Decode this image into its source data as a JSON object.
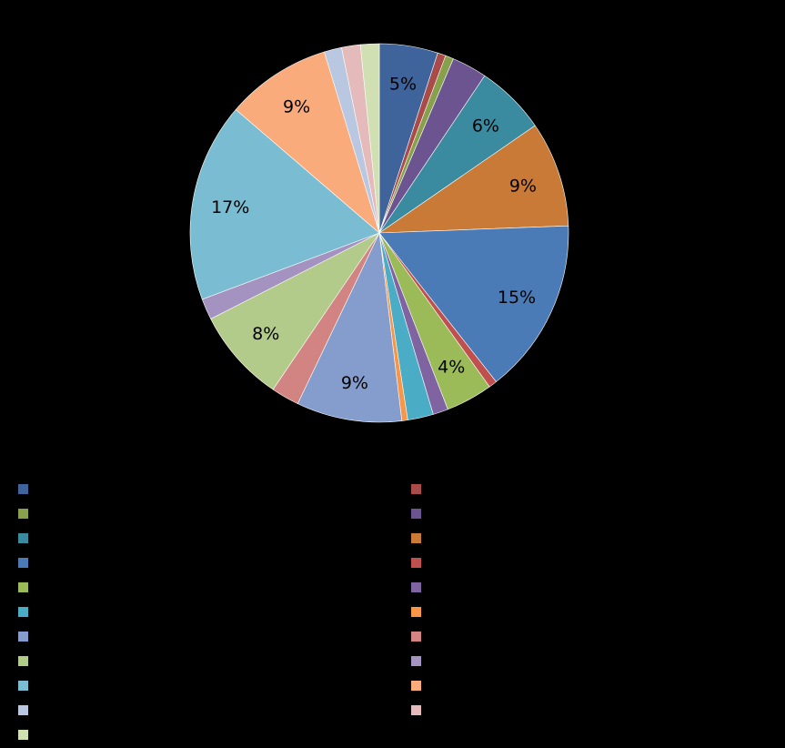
{
  "chart_data": {
    "type": "pie",
    "title": "",
    "start_angle_deg": 0,
    "direction": "clockwise",
    "slices": [
      {
        "value": 5.0,
        "label": "5%",
        "color": "#3f649c",
        "category": ""
      },
      {
        "value": 0.7,
        "label": "",
        "color": "#a94b48",
        "category": ""
      },
      {
        "value": 0.7,
        "label": "",
        "color": "#86a04b",
        "category": ""
      },
      {
        "value": 3.0,
        "label": "",
        "color": "#6c5490",
        "category": ""
      },
      {
        "value": 6.0,
        "label": "6%",
        "color": "#3b8ba0",
        "category": ""
      },
      {
        "value": 9.0,
        "label": "9%",
        "color": "#c87a36",
        "category": ""
      },
      {
        "value": 15.0,
        "label": "15%",
        "color": "#4a7bb7",
        "category": ""
      },
      {
        "value": 0.7,
        "label": "",
        "color": "#c0504d",
        "category": ""
      },
      {
        "value": 4.0,
        "label": "4%",
        "color": "#9bbb59",
        "category": ""
      },
      {
        "value": 1.3,
        "label": "",
        "color": "#8064a2",
        "category": ""
      },
      {
        "value": 2.2,
        "label": "",
        "color": "#4bacc6",
        "category": ""
      },
      {
        "value": 0.5,
        "label": "",
        "color": "#f79646",
        "category": ""
      },
      {
        "value": 9.0,
        "label": "9%",
        "color": "#859dcc",
        "category": ""
      },
      {
        "value": 2.4,
        "label": "",
        "color": "#d28482",
        "category": ""
      },
      {
        "value": 8.0,
        "label": "8%",
        "color": "#b3cb8a",
        "category": ""
      },
      {
        "value": 1.8,
        "label": "",
        "color": "#a493c0",
        "category": ""
      },
      {
        "value": 17.0,
        "label": "17%",
        "color": "#7abcd1",
        "category": ""
      },
      {
        "value": 9.0,
        "label": "9%",
        "color": "#f9ab7c",
        "category": ""
      },
      {
        "value": 1.5,
        "label": "",
        "color": "#b9c7e0",
        "category": ""
      },
      {
        "value": 1.6,
        "label": "",
        "color": "#e4baba",
        "category": ""
      },
      {
        "value": 1.6,
        "label": "",
        "color": "#d0e0b3",
        "category": ""
      }
    ],
    "legend": {
      "placement": "bottom",
      "columns": 2
    }
  }
}
